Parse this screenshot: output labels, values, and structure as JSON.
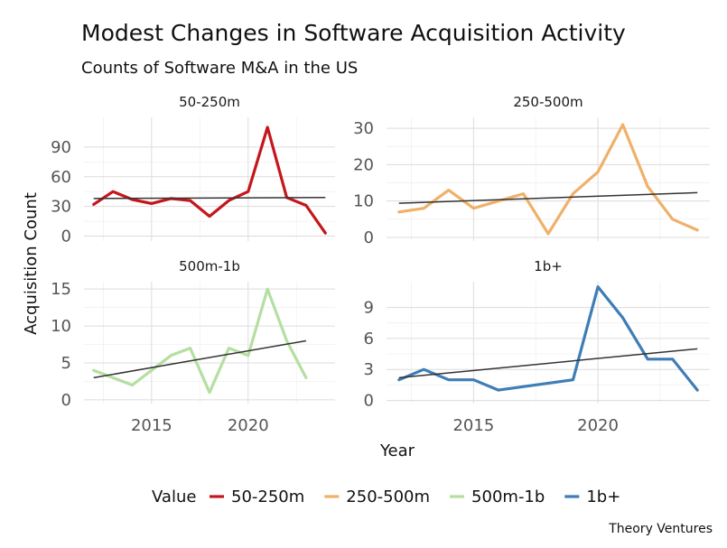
{
  "chart_data": {
    "type": "line",
    "title": "Modest Changes in Software Acquisition Activity",
    "subtitle": "Counts of Software M&A in the US",
    "xlabel": "Year",
    "ylabel": "Acquisition Count",
    "caption": "Theory Ventures",
    "legend": {
      "title": "Value",
      "placement": "bottom"
    },
    "x_ticks": [
      2015,
      2020
    ],
    "xlim": [
      2011.5,
      2024.5
    ],
    "grid": true,
    "facets": [
      {
        "name": "50-250m",
        "color": "#c4161c",
        "ylim": [
          -5,
          120
        ],
        "y_ticks": [
          0,
          30,
          60,
          90
        ],
        "x": [
          2012,
          2013,
          2014,
          2015,
          2016,
          2017,
          2018,
          2019,
          2020,
          2021,
          2022,
          2023,
          2024
        ],
        "values": [
          32,
          45,
          37,
          33,
          38,
          36,
          20,
          36,
          45,
          110,
          39,
          31,
          3
        ],
        "trend": [
          [
            2012,
            38
          ],
          [
            2024,
            39
          ]
        ]
      },
      {
        "name": "250-500m",
        "color": "#f0b06a",
        "ylim": [
          -1,
          33
        ],
        "y_ticks": [
          0,
          10,
          20,
          30
        ],
        "x": [
          2012,
          2013,
          2014,
          2015,
          2016,
          2017,
          2018,
          2019,
          2020,
          2021,
          2022,
          2023,
          2024
        ],
        "values": [
          7,
          8,
          13,
          8,
          10,
          12,
          1,
          12,
          18,
          31,
          14,
          5,
          2
        ],
        "trend": [
          [
            2012,
            9.4
          ],
          [
            2024,
            12.3
          ]
        ]
      },
      {
        "name": "500m-1b",
        "color": "#b5dfa0",
        "ylim": [
          -0.5,
          16
        ],
        "y_ticks": [
          0,
          5,
          10,
          15
        ],
        "x": [
          2012,
          2013,
          2014,
          2015,
          2016,
          2017,
          2018,
          2019,
          2020,
          2021,
          2022,
          2023
        ],
        "values": [
          4,
          3,
          2,
          4,
          6,
          7,
          1,
          7,
          6,
          15,
          8,
          3
        ],
        "trend": [
          [
            2012,
            3
          ],
          [
            2023,
            8
          ]
        ]
      },
      {
        "name": "1b+",
        "color": "#3e7db5",
        "ylim": [
          -0.3,
          11.5
        ],
        "y_ticks": [
          0,
          3,
          6,
          9
        ],
        "x": [
          2012,
          2013,
          2014,
          2015,
          2016,
          2019,
          2020,
          2021,
          2022,
          2023,
          2024
        ],
        "values": [
          2,
          3,
          2,
          2,
          1,
          2,
          11,
          8,
          4,
          4,
          1
        ],
        "trend": [
          [
            2012,
            2.2
          ],
          [
            2024,
            5
          ]
        ]
      }
    ]
  }
}
